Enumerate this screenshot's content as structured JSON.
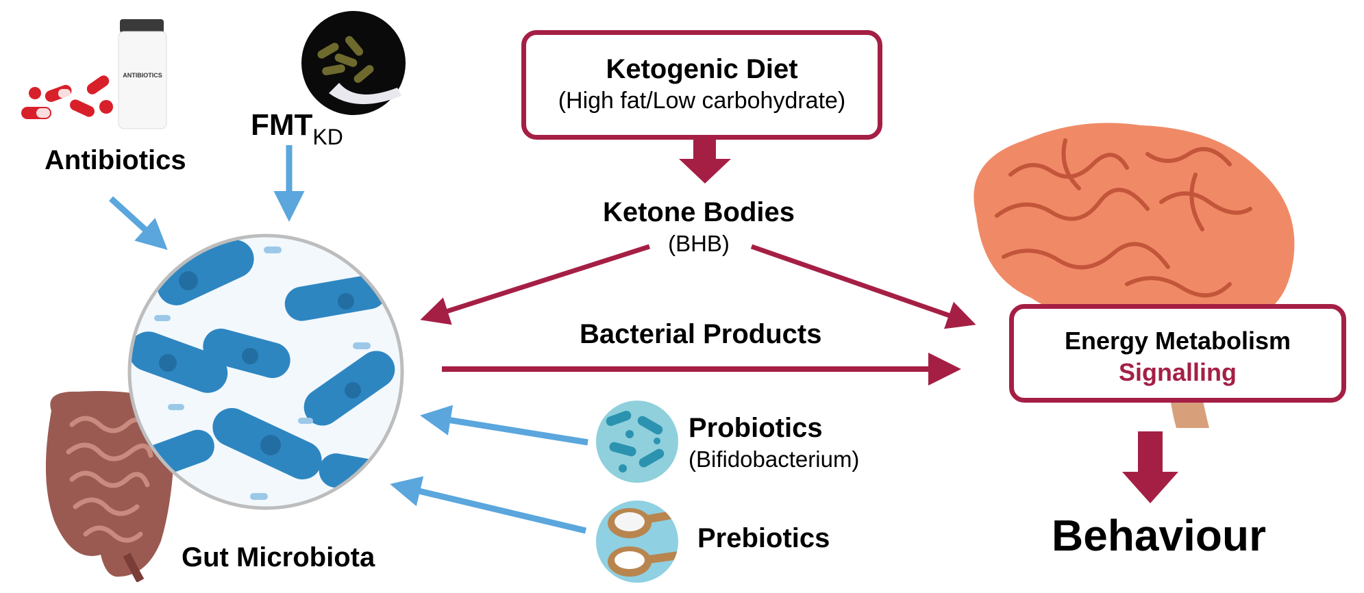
{
  "diet": {
    "title": "Ketogenic Diet",
    "subtitle": "(High fat/Low carbohydrate)"
  },
  "ketones": {
    "title": "Ketone Bodies",
    "subtitle": "(BHB)"
  },
  "bacterial_products": {
    "label": "Bacterial Products"
  },
  "energy": {
    "line1": "Energy Metabolism",
    "line2": "Signalling"
  },
  "behaviour": {
    "label": "Behaviour"
  },
  "antibiotics": {
    "label": "Antibiotics",
    "bottle_label": "ANTIBIOTICS"
  },
  "fmt": {
    "label": "FMT",
    "subscript": "KD"
  },
  "gut": {
    "label": "Gut Microbiota"
  },
  "probiotics": {
    "title": "Probiotics",
    "subtitle": "(Bifidobacterium)"
  },
  "prebiotics": {
    "label": "Prebiotics"
  },
  "colors": {
    "crimson": "#a51f45",
    "blue_arrow": "#5aa6dd",
    "signalling_text": "#a51f45"
  },
  "icons": [
    "antibiotics-pills-icon",
    "fmt-capsules-icon",
    "bacteria-icon",
    "intestine-icon",
    "brain-icon",
    "probiotics-icon",
    "prebiotics-spoons-icon"
  ]
}
